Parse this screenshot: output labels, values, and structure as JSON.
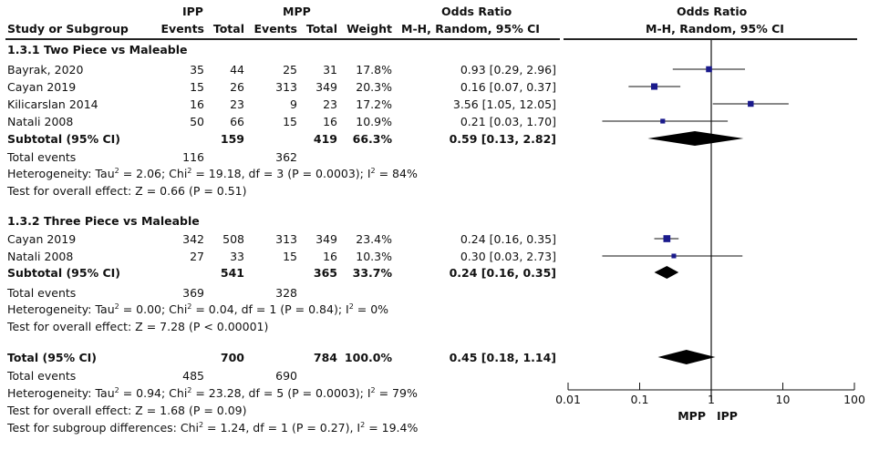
{
  "header": {
    "group1": "IPP",
    "group2": "MPP",
    "or_top": "Odds Ratio",
    "or_plot_top": "Odds Ratio",
    "col_study": "Study or Subgroup",
    "col_events1": "Events",
    "col_total1": "Total",
    "col_events2": "Events",
    "col_total2": "Total",
    "col_weight": "Weight",
    "col_method": "M-H, Random, 95% CI",
    "col_method_plot": "M-H, Random, 95% CI"
  },
  "sections": [
    {
      "title": "1.3.1 Two Piece vs Maleable",
      "studies": [
        {
          "name": "Bayrak, 2020",
          "e1": "35",
          "t1": "44",
          "e2": "25",
          "t2": "31",
          "weight": "17.8%",
          "ci": "0.93 [0.29, 2.96]"
        },
        {
          "name": "Cayan 2019",
          "e1": "15",
          "t1": "26",
          "e2": "313",
          "t2": "349",
          "weight": "20.3%",
          "ci": "0.16 [0.07, 0.37]"
        },
        {
          "name": "Kilicarslan 2014",
          "e1": "16",
          "t1": "23",
          "e2": "9",
          "t2": "23",
          "weight": "17.2%",
          "ci": "3.56 [1.05, 12.05]"
        },
        {
          "name": "Natali 2008",
          "e1": "50",
          "t1": "66",
          "e2": "15",
          "t2": "16",
          "weight": "10.9%",
          "ci": "0.21 [0.03, 1.70]"
        }
      ],
      "subtotal": {
        "label": "Subtotal (95% CI)",
        "t1": "159",
        "t2": "419",
        "weight": "66.3%",
        "ci": "0.59 [0.13, 2.82]"
      },
      "events": {
        "label": "Total events",
        "e1": "116",
        "e2": "362"
      },
      "heterogeneity": {
        "pre": "Heterogeneity: Tau",
        "mid": " = 2.06; Chi",
        "post": " = 19.18, df = 3 (P = 0.0003); I",
        "end": " = 84%"
      },
      "overall": "Test for overall effect: Z = 0.66 (P = 0.51)"
    },
    {
      "title": "1.3.2 Three Piece vs Maleable",
      "studies": [
        {
          "name": "Cayan 2019",
          "e1": "342",
          "t1": "508",
          "e2": "313",
          "t2": "349",
          "weight": "23.4%",
          "ci": "0.24 [0.16, 0.35]"
        },
        {
          "name": "Natali 2008",
          "e1": "27",
          "t1": "33",
          "e2": "15",
          "t2": "16",
          "weight": "10.3%",
          "ci": "0.30 [0.03, 2.73]"
        }
      ],
      "subtotal": {
        "label": "Subtotal (95% CI)",
        "t1": "541",
        "t2": "365",
        "weight": "33.7%",
        "ci": "0.24 [0.16, 0.35]"
      },
      "events": {
        "label": "Total events",
        "e1": "369",
        "e2": "328"
      },
      "heterogeneity": {
        "pre": "Heterogeneity: Tau",
        "mid": " = 0.00; Chi",
        "post": " = 0.04, df = 1 (P = 0.84); I",
        "end": " = 0%"
      },
      "overall": "Test for overall effect: Z = 7.28 (P < 0.00001)"
    }
  ],
  "total": {
    "label": "Total (95% CI)",
    "t1": "700",
    "t2": "784",
    "weight": "100.0%",
    "ci": "0.45 [0.18, 1.14]"
  },
  "total_events": {
    "label": "Total events",
    "e1": "485",
    "e2": "690"
  },
  "total_heterogeneity": {
    "pre": "Heterogeneity: Tau",
    "mid": " = 0.94; Chi",
    "post": " = 23.28, df = 5 (P = 0.0003); I",
    "end": " = 79%"
  },
  "total_overall": "Test for overall effect: Z = 1.68 (P = 0.09)",
  "subgroup_diff": {
    "pre": "Test for subgroup differences: Chi",
    "post": " = 1.24, df = 1 (P = 0.27), I",
    "end": " = 19.4%"
  },
  "sup2": "2",
  "colors": {
    "study_marker": "#1a1a8c",
    "diamond": "#000000",
    "line": "#111111"
  },
  "chart_data": {
    "type": "forest",
    "title": "Odds Ratio",
    "subtitle": "M-H, Random, 95% CI",
    "scale": "log",
    "xlim": [
      0.01,
      100
    ],
    "ticks": [
      {
        "value": 0.01,
        "label": "0.01"
      },
      {
        "value": 0.1,
        "label": "0.1"
      },
      {
        "value": 1,
        "label": "1"
      },
      {
        "value": 10,
        "label": "10"
      },
      {
        "value": 100,
        "label": "100"
      }
    ],
    "favours_left": "MPP",
    "favours_right": "IPP",
    "studies": [
      {
        "label": "Bayrak, 2020",
        "or": 0.93,
        "lo": 0.29,
        "hi": 2.96,
        "weight": 17.8
      },
      {
        "label": "Cayan 2019",
        "or": 0.16,
        "lo": 0.07,
        "hi": 0.37,
        "weight": 20.3
      },
      {
        "label": "Kilicarslan 2014",
        "or": 3.56,
        "lo": 1.05,
        "hi": 12.05,
        "weight": 17.2
      },
      {
        "label": "Natali 2008",
        "or": 0.21,
        "lo": 0.03,
        "hi": 1.7,
        "weight": 10.9
      },
      {
        "label": "Cayan 2019",
        "or": 0.24,
        "lo": 0.16,
        "hi": 0.35,
        "weight": 23.4
      },
      {
        "label": "Natali 2008",
        "or": 0.3,
        "lo": 0.03,
        "hi": 2.73,
        "weight": 10.3
      }
    ],
    "summaries": [
      {
        "label": "Subtotal 1.3.1",
        "or": 0.59,
        "lo": 0.13,
        "hi": 2.82
      },
      {
        "label": "Subtotal 1.3.2",
        "or": 0.24,
        "lo": 0.16,
        "hi": 0.35
      },
      {
        "label": "Total",
        "or": 0.45,
        "lo": 0.18,
        "hi": 1.14
      }
    ]
  }
}
